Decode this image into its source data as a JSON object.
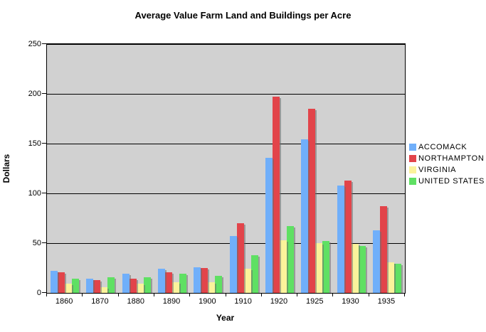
{
  "chart_data": {
    "type": "bar",
    "title": "Average Value Farm Land and Buildings per Acre",
    "xlabel": "Year",
    "ylabel": "Dollars",
    "ylim": [
      0,
      250
    ],
    "yticks": [
      0,
      50,
      100,
      150,
      200,
      250
    ],
    "grid": true,
    "legend_position": "right",
    "plot_background": "#D1D1D1",
    "categories": [
      "1860",
      "1870",
      "1880",
      "1890",
      "1900",
      "1910",
      "1920",
      "1925",
      "1930",
      "1935"
    ],
    "series": [
      {
        "name": "ACCOMACK",
        "color": "#70AFFA",
        "values": [
          22,
          14,
          19,
          24,
          26,
          57,
          136,
          154,
          108,
          63
        ]
      },
      {
        "name": "NORTHAMPTON",
        "color": "#E2444A",
        "values": [
          21,
          13,
          14,
          21,
          25,
          70,
          197,
          185,
          113,
          87
        ]
      },
      {
        "name": "VIRGINIA",
        "color": "#FBF39B",
        "values": [
          9,
          6,
          9,
          11,
          11,
          24,
          53,
          50,
          49,
          31
        ]
      },
      {
        "name": "UNITED STATES",
        "color": "#5FE063",
        "values": [
          14,
          16,
          16,
          19,
          17,
          38,
          67,
          52,
          47,
          29
        ]
      }
    ]
  }
}
